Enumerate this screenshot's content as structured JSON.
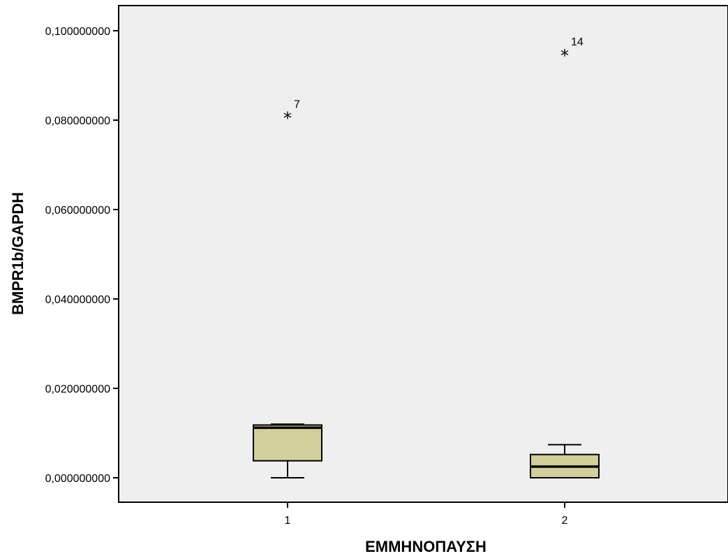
{
  "chart_data": {
    "type": "boxplot",
    "xlabel": "ΕΜΜΗΝΟΠΑΥΣΗ",
    "ylabel": "BMPR1b/GAPDH",
    "ylim": [
      -0.0055,
      0.1055
    ],
    "yticks": [
      "0,000000000",
      "0,020000000",
      "0,040000000",
      "0,060000000",
      "0,080000000",
      "0,100000000"
    ],
    "ytick_values": [
      0.0,
      0.02,
      0.04,
      0.06,
      0.08,
      0.1
    ],
    "categories": [
      "1",
      "2"
    ],
    "box_color": "#d3cf9b",
    "background_color": "#efefef",
    "boxes": [
      {
        "category": "1",
        "min": 0.0,
        "q1": 0.0038,
        "median": 0.0112,
        "q3": 0.0118,
        "max": 0.012,
        "outliers": [
          {
            "value": 0.0815,
            "label": "7"
          }
        ]
      },
      {
        "category": "2",
        "min": 0.0,
        "q1": 0.0,
        "median": 0.0025,
        "q3": 0.0052,
        "max": 0.0074,
        "outliers": [
          {
            "value": 0.0955,
            "label": "14"
          }
        ]
      }
    ]
  }
}
